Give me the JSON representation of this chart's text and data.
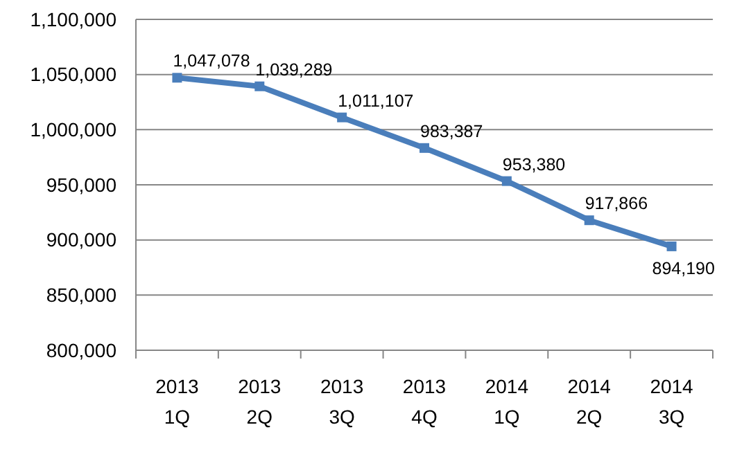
{
  "chart_data": {
    "type": "line",
    "categories": [
      "2013 1Q",
      "2013 2Q",
      "2013 3Q",
      "2013 4Q",
      "2014 1Q",
      "2014 2Q",
      "2014 3Q"
    ],
    "series": [
      {
        "color": "#4a7ebb",
        "values": [
          1047078,
          1039289,
          1011107,
          983387,
          953380,
          917866,
          894190
        ],
        "value_labels": [
          "1,047,078",
          "1,039,289",
          "1,011,107",
          "983,387",
          "953,380",
          "917,866",
          "894,190"
        ]
      }
    ],
    "ylim": [
      800000,
      1100000
    ],
    "yticks": [
      {
        "value": 800000,
        "label": "800,000"
      },
      {
        "value": 850000,
        "label": "850,000"
      },
      {
        "value": 900000,
        "label": "900,000"
      },
      {
        "value": 950000,
        "label": "950,000"
      },
      {
        "value": 1000000,
        "label": "1,000,000"
      },
      {
        "value": 1050000,
        "label": "1,050,000"
      },
      {
        "value": 1100000,
        "label": "1,100,000"
      }
    ],
    "grid": "y",
    "marker": "square",
    "line_style": "solid"
  }
}
